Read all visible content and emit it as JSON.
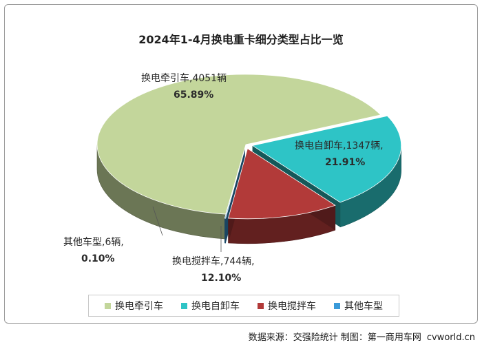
{
  "title": "2024年1-4月换电重卡细分类型占比一览",
  "footer": {
    "source": "数据来源：交强险统计  制图：第一商用车网",
    "brand": "cvworld.cn"
  },
  "colors": {
    "tractor": "#c3d69b",
    "dump": "#2ec4c6",
    "mixer": "#b23a39",
    "other": "#3a9ad9",
    "text": "#2a2a2a"
  },
  "chart_data": {
    "type": "pie",
    "title": "2024年1-4月换电重卡细分类型占比一览",
    "categories": [
      "换电牵引车",
      "换电自卸车",
      "换电搅拌车",
      "其他车型"
    ],
    "values": [
      4051,
      1347,
      744,
      6
    ],
    "percents": [
      65.89,
      21.91,
      12.1,
      0.1
    ],
    "unit": "辆",
    "labels": [
      {
        "name": "换电牵引车,",
        "value": "4051辆",
        "pct": "65.89%"
      },
      {
        "name": "换电自卸车,",
        "value": "1347辆,",
        "pct": "21.91%"
      },
      {
        "name": "换电搅拌车,",
        "value": "744辆,",
        "pct": "12.10%"
      },
      {
        "name": "其他车型,",
        "value": "6辆,",
        "pct": "0.10%"
      }
    ],
    "legend_position": "bottom",
    "style": "3d"
  }
}
